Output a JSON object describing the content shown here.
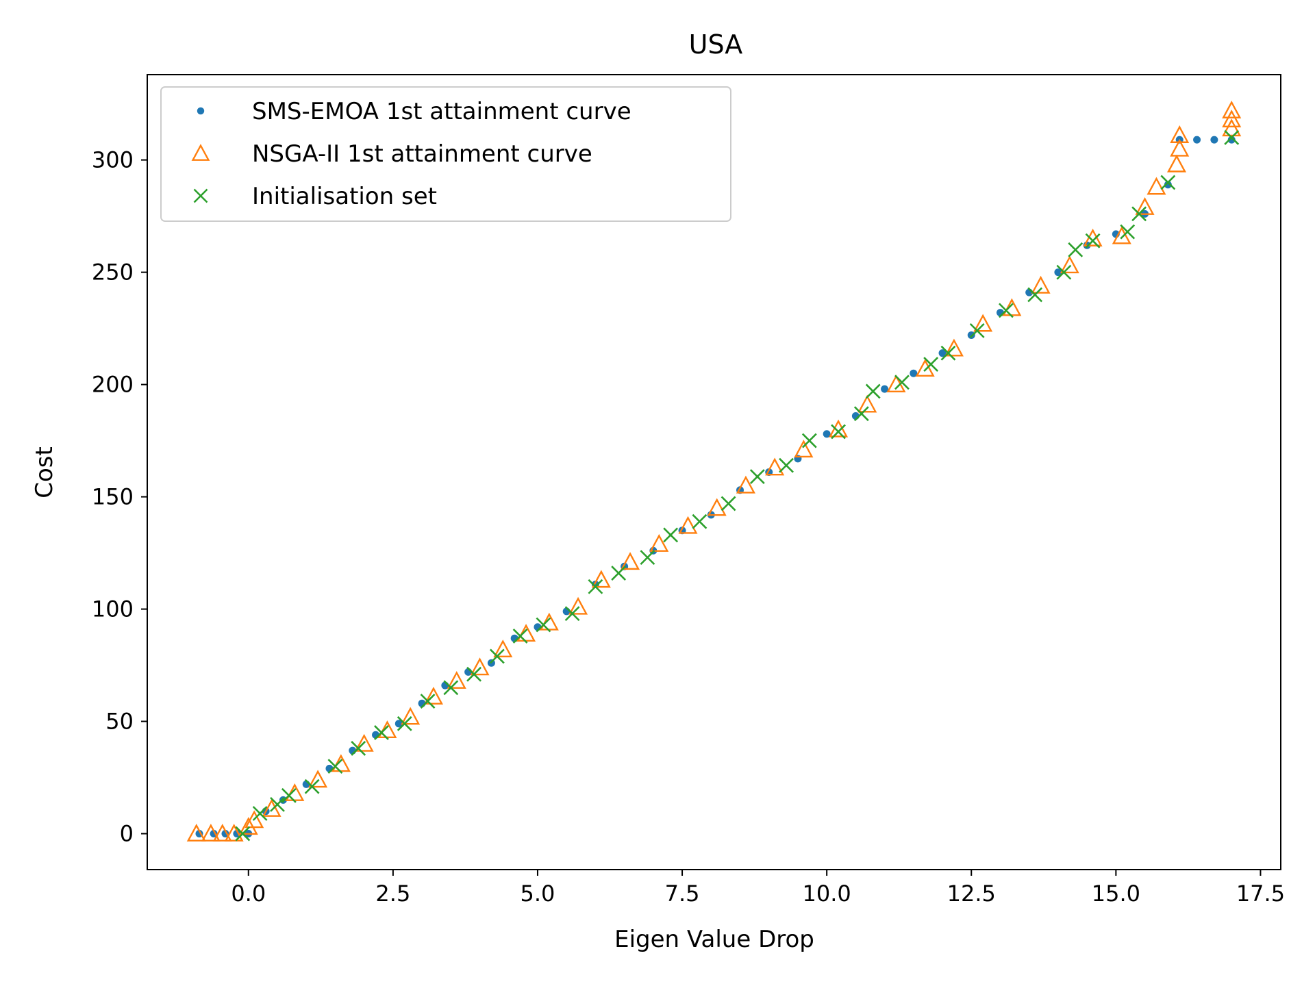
{
  "chart_data": {
    "type": "scatter",
    "title": "USA",
    "xlabel": "Eigen Value Drop",
    "ylabel": "Cost",
    "xlim": [
      -1.75,
      17.85
    ],
    "ylim": [
      -16,
      338
    ],
    "xticks": [
      0.0,
      2.5,
      5.0,
      7.5,
      10.0,
      12.5,
      15.0,
      17.5
    ],
    "xtick_labels": [
      "0.0",
      "2.5",
      "5.0",
      "7.5",
      "10.0",
      "12.5",
      "15.0",
      "17.5"
    ],
    "yticks": [
      0,
      50,
      100,
      150,
      200,
      250,
      300
    ],
    "ytick_labels": [
      "0",
      "50",
      "100",
      "150",
      "200",
      "250",
      "300"
    ],
    "grid": false,
    "legend_position": "top-left",
    "series": [
      {
        "name": "SMS-EMOA 1st attainment curve",
        "marker": "dot",
        "color": "#1f77b4",
        "points": [
          [
            -0.85,
            0
          ],
          [
            -0.6,
            0
          ],
          [
            -0.4,
            0
          ],
          [
            -0.2,
            0
          ],
          [
            0.0,
            0
          ],
          [
            0.3,
            10
          ],
          [
            0.6,
            15
          ],
          [
            1.0,
            22
          ],
          [
            1.4,
            29
          ],
          [
            1.8,
            37
          ],
          [
            2.2,
            44
          ],
          [
            2.6,
            49
          ],
          [
            3.0,
            58
          ],
          [
            3.4,
            66
          ],
          [
            3.8,
            72
          ],
          [
            4.2,
            76
          ],
          [
            4.6,
            87
          ],
          [
            5.0,
            92
          ],
          [
            5.5,
            99
          ],
          [
            6.0,
            111
          ],
          [
            6.5,
            119
          ],
          [
            7.0,
            126
          ],
          [
            7.5,
            135
          ],
          [
            8.0,
            142
          ],
          [
            8.5,
            153
          ],
          [
            9.0,
            161
          ],
          [
            9.5,
            167
          ],
          [
            10.0,
            178
          ],
          [
            10.5,
            186
          ],
          [
            11.0,
            198
          ],
          [
            11.5,
            205
          ],
          [
            12.0,
            214
          ],
          [
            12.5,
            222
          ],
          [
            13.0,
            232
          ],
          [
            13.5,
            241
          ],
          [
            14.0,
            250
          ],
          [
            14.5,
            262
          ],
          [
            15.0,
            267
          ],
          [
            15.5,
            276
          ],
          [
            15.9,
            289
          ],
          [
            16.1,
            309
          ],
          [
            16.4,
            309
          ],
          [
            16.7,
            309
          ],
          [
            17.0,
            309
          ]
        ]
      },
      {
        "name": "NSGA-II 1st attainment curve",
        "marker": "triangle",
        "color": "#ff7f0e",
        "points": [
          [
            -0.9,
            0
          ],
          [
            -0.65,
            0
          ],
          [
            -0.45,
            0
          ],
          [
            -0.25,
            0
          ],
          [
            0.0,
            3
          ],
          [
            0.1,
            6
          ],
          [
            0.4,
            11
          ],
          [
            0.8,
            18
          ],
          [
            1.2,
            24
          ],
          [
            1.6,
            31
          ],
          [
            2.0,
            40
          ],
          [
            2.4,
            46
          ],
          [
            2.8,
            52
          ],
          [
            3.2,
            61
          ],
          [
            3.6,
            68
          ],
          [
            4.0,
            74
          ],
          [
            4.4,
            82
          ],
          [
            4.8,
            89
          ],
          [
            5.2,
            94
          ],
          [
            5.7,
            101
          ],
          [
            6.1,
            113
          ],
          [
            6.6,
            121
          ],
          [
            7.1,
            129
          ],
          [
            7.6,
            137
          ],
          [
            8.1,
            145
          ],
          [
            8.6,
            155
          ],
          [
            9.1,
            163
          ],
          [
            9.6,
            171
          ],
          [
            10.2,
            180
          ],
          [
            10.7,
            191
          ],
          [
            11.2,
            200
          ],
          [
            11.7,
            207
          ],
          [
            12.2,
            216
          ],
          [
            12.7,
            227
          ],
          [
            13.2,
            234
          ],
          [
            13.7,
            244
          ],
          [
            14.2,
            253
          ],
          [
            14.6,
            265
          ],
          [
            15.1,
            266
          ],
          [
            15.5,
            279
          ],
          [
            15.7,
            288
          ],
          [
            16.05,
            298
          ],
          [
            16.1,
            305
          ],
          [
            16.1,
            311
          ],
          [
            17.0,
            314
          ],
          [
            17.0,
            318
          ],
          [
            17.0,
            322
          ]
        ]
      },
      {
        "name": "Initialisation set",
        "marker": "x",
        "color": "#2ca02c",
        "points": [
          [
            -0.1,
            0
          ],
          [
            0.2,
            9
          ],
          [
            0.5,
            13
          ],
          [
            0.7,
            17
          ],
          [
            1.1,
            21
          ],
          [
            1.5,
            30
          ],
          [
            1.9,
            38
          ],
          [
            2.3,
            45
          ],
          [
            2.7,
            49
          ],
          [
            3.1,
            59
          ],
          [
            3.5,
            65
          ],
          [
            3.9,
            71
          ],
          [
            4.3,
            79
          ],
          [
            4.7,
            88
          ],
          [
            5.1,
            93
          ],
          [
            5.6,
            98
          ],
          [
            6.0,
            110
          ],
          [
            6.4,
            116
          ],
          [
            6.9,
            123
          ],
          [
            7.3,
            133
          ],
          [
            7.8,
            139
          ],
          [
            8.3,
            147
          ],
          [
            8.8,
            159
          ],
          [
            9.3,
            164
          ],
          [
            9.7,
            175
          ],
          [
            10.2,
            179
          ],
          [
            10.6,
            187
          ],
          [
            10.8,
            197
          ],
          [
            11.3,
            201
          ],
          [
            11.8,
            209
          ],
          [
            12.1,
            214
          ],
          [
            12.6,
            224
          ],
          [
            13.1,
            233
          ],
          [
            13.6,
            240
          ],
          [
            14.1,
            250
          ],
          [
            14.3,
            260
          ],
          [
            14.6,
            264
          ],
          [
            15.2,
            268
          ],
          [
            15.4,
            276
          ],
          [
            15.9,
            290
          ],
          [
            17.0,
            310
          ]
        ]
      }
    ]
  }
}
